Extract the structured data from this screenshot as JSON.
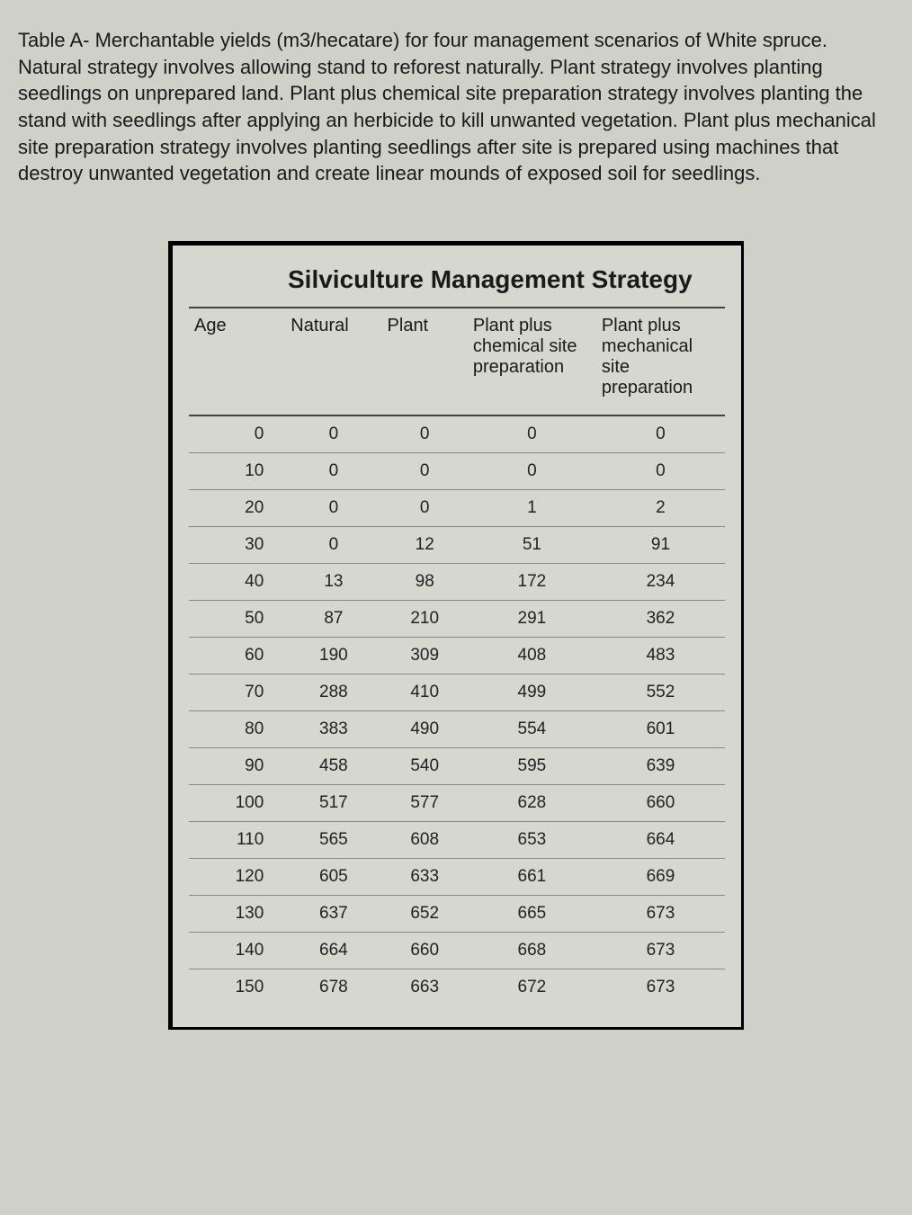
{
  "caption": "Table A- Merchantable yields (m3/hecatare) for four management scenarios of White spruce. Natural strategy involves allowing stand to reforest naturally. Plant strategy involves planting seedlings on unprepared land. Plant plus chemical site preparation strategy involves planting the stand with seedlings after applying an herbicide to kill unwanted vegetation. Plant plus mechanical site preparation strategy involves planting seedlings after site is prepared using machines that destroy unwanted vegetation and create linear mounds of exposed soil for seedlings.",
  "table": {
    "super_header": "Silviculture Management Strategy",
    "columns": [
      "Age",
      "Natural",
      "Plant",
      "Plant plus chemical site preparation",
      "Plant plus mechanical site preparation"
    ],
    "rows": [
      [
        "0",
        "0",
        "0",
        "0",
        "0"
      ],
      [
        "10",
        "0",
        "0",
        "0",
        "0"
      ],
      [
        "20",
        "0",
        "0",
        "1",
        "2"
      ],
      [
        "30",
        "0",
        "12",
        "51",
        "91"
      ],
      [
        "40",
        "13",
        "98",
        "172",
        "234"
      ],
      [
        "50",
        "87",
        "210",
        "291",
        "362"
      ],
      [
        "60",
        "190",
        "309",
        "408",
        "483"
      ],
      [
        "70",
        "288",
        "410",
        "499",
        "552"
      ],
      [
        "80",
        "383",
        "490",
        "554",
        "601"
      ],
      [
        "90",
        "458",
        "540",
        "595",
        "639"
      ],
      [
        "100",
        "517",
        "577",
        "628",
        "660"
      ],
      [
        "110",
        "565",
        "608",
        "653",
        "664"
      ],
      [
        "120",
        "605",
        "633",
        "661",
        "669"
      ],
      [
        "130",
        "637",
        "652",
        "665",
        "673"
      ],
      [
        "140",
        "664",
        "660",
        "668",
        "673"
      ],
      [
        "150",
        "678",
        "663",
        "672",
        "673"
      ]
    ],
    "col_widths_pct": [
      18,
      18,
      16,
      24,
      24
    ],
    "background_color": "#d6d7ce",
    "border_color": "#000000",
    "row_border_color": "#888888",
    "header_border_color": "#444444",
    "super_header_fontsize": 28,
    "header_fontsize": 20,
    "cell_fontsize": 19
  },
  "page_background_color": "#cfd1c9",
  "caption_fontsize": 22
}
